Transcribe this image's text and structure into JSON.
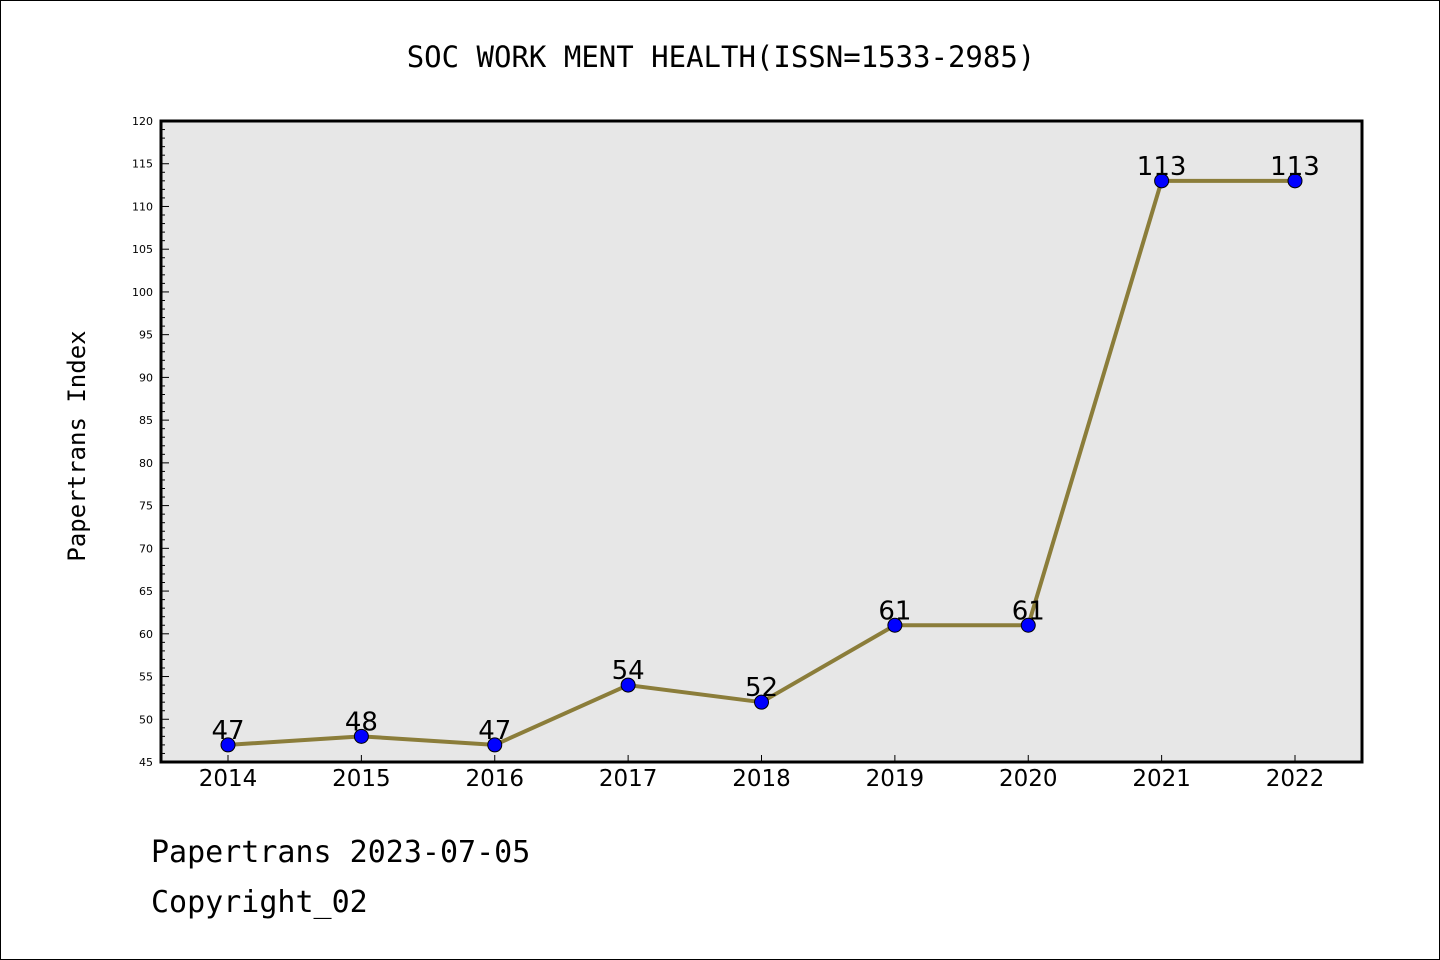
{
  "chart_data": {
    "type": "line",
    "title": "SOC WORK MENT HEALTH(ISSN=1533-2985)",
    "xlabel": "",
    "ylabel": "Papertrans Index",
    "categories": [
      "2014",
      "2015",
      "2016",
      "2017",
      "2018",
      "2019",
      "2020",
      "2021",
      "2022"
    ],
    "series": [
      {
        "values": [
          47,
          48,
          47,
          54,
          52,
          61,
          61,
          113,
          113
        ],
        "data_labels": [
          "47",
          "48",
          "47",
          "54",
          "52",
          "61",
          "61",
          "113",
          "113"
        ]
      }
    ],
    "ylim": [
      45,
      120
    ],
    "ytick_step": 5,
    "grid": false,
    "legend": "none",
    "colors": {
      "line": "#8b7d3a",
      "marker": "#0000ff",
      "plot_background": "#e7e7e7",
      "axes": "#000000"
    }
  },
  "footer": {
    "line1": "Papertrans 2023-07-05",
    "line2": "Copyright_02"
  }
}
